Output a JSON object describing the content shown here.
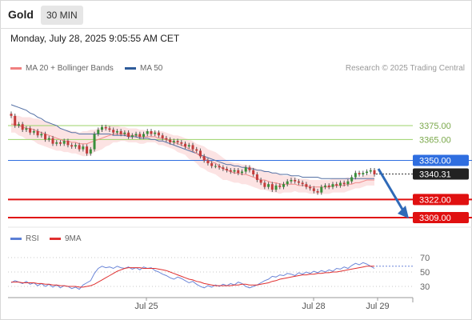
{
  "header": {
    "asset": "Gold",
    "timeframe": "30 MIN",
    "datetime": "Monday, July 28, 2025 9:05:55 AM CET"
  },
  "legend": {
    "main": [
      {
        "label": "MA 20 + Bollinger Bands",
        "color": "#f08080"
      },
      {
        "label": "MA 50",
        "color": "#2e5b9a"
      }
    ],
    "credit": "Research © 2025 Trading Central",
    "rsi": [
      {
        "label": "RSI",
        "color": "#5b7fd6"
      },
      {
        "label": "9MA",
        "color": "#e03030"
      }
    ]
  },
  "chart_data": [
    {
      "type": "candlestick",
      "ylim": [
        3300,
        3395
      ],
      "x_ticks": [
        "Jul 25",
        "Jul 28",
        "Jul 29"
      ],
      "last_price": "3340.31",
      "levels": [
        {
          "label": "3375.00",
          "value": 3375,
          "kind": "resistance-light",
          "color": "#9cd36a"
        },
        {
          "label": "3365.00",
          "value": 3365,
          "kind": "resistance-light",
          "color": "#9cd36a"
        },
        {
          "label": "3350.00",
          "value": 3350,
          "kind": "pivot",
          "color": "#2f6ee0"
        },
        {
          "label": "3322.00",
          "value": 3322,
          "kind": "support",
          "color": "#e01010"
        },
        {
          "label": "3309.00",
          "value": 3309,
          "kind": "support",
          "color": "#e01010"
        }
      ],
      "close": [
        3382,
        3375,
        3376,
        3372,
        3373,
        3370,
        3371,
        3368,
        3369,
        3365,
        3366,
        3362,
        3363,
        3362,
        3364,
        3361,
        3360,
        3361,
        3358,
        3360,
        3355,
        3358,
        3369,
        3372,
        3374,
        3373,
        3372,
        3370,
        3371,
        3369,
        3370,
        3367,
        3368,
        3369,
        3367,
        3369,
        3371,
        3369,
        3370,
        3368,
        3366,
        3365,
        3363,
        3364,
        3363,
        3362,
        3360,
        3361,
        3358,
        3357,
        3353,
        3350,
        3348,
        3346,
        3346,
        3345,
        3344,
        3343,
        3342,
        3343,
        3341,
        3342,
        3345,
        3343,
        3340,
        3336,
        3334,
        3331,
        3333,
        3329,
        3332,
        3331,
        3333,
        3335,
        3336,
        3335,
        3334,
        3333,
        3331,
        3330,
        3328,
        3327,
        3331,
        3332,
        3331,
        3333,
        3332,
        3334,
        3333,
        3335,
        3338,
        3341,
        3340,
        3341,
        3342,
        3343,
        3340
      ],
      "series": [
        {
          "name": "MA 20",
          "values": [
            3376,
            3376,
            3375,
            3374,
            3373,
            3373,
            3372,
            3371,
            3370,
            3369,
            3368,
            3367,
            3366,
            3365,
            3364,
            3364,
            3363,
            3363,
            3362,
            3362,
            3362,
            3363,
            3364,
            3365,
            3366,
            3367,
            3368,
            3369,
            3369,
            3369,
            3369,
            3368,
            3368,
            3368,
            3367,
            3367,
            3367,
            3367,
            3367,
            3366,
            3366,
            3365,
            3364,
            3363,
            3362,
            3361,
            3360,
            3358,
            3357,
            3355,
            3353,
            3352,
            3350,
            3349,
            3348,
            3346,
            3344,
            3343,
            3342,
            3341,
            3341,
            3340,
            3340,
            3339,
            3338,
            3337,
            3336,
            3336,
            3335,
            3334,
            3334,
            3333,
            3333,
            3333,
            3333,
            3333,
            3332,
            3332,
            3332,
            3331,
            3331,
            3331,
            3331,
            3331,
            3331,
            3332,
            3332,
            3332,
            3332,
            3333,
            3333,
            3334,
            3334,
            3335,
            3336,
            3336,
            3336
          ]
        },
        {
          "name": "MA 50",
          "values": [
            3390,
            3389,
            3388,
            3387,
            3386,
            3384,
            3383,
            3381,
            3380,
            3378,
            3377,
            3376,
            3375,
            3373,
            3372,
            3371,
            3370,
            3370,
            3369,
            3369,
            3369,
            3369,
            3369,
            3369,
            3369,
            3369,
            3369,
            3368,
            3368,
            3368,
            3368,
            3367,
            3367,
            3367,
            3366,
            3366,
            3366,
            3365,
            3365,
            3364,
            3364,
            3363,
            3362,
            3361,
            3360,
            3359,
            3358,
            3357,
            3356,
            3355,
            3354,
            3353,
            3352,
            3351,
            3350,
            3349,
            3348,
            3347,
            3347,
            3346,
            3346,
            3345,
            3345,
            3344,
            3344,
            3343,
            3343,
            3342,
            3342,
            3341,
            3341,
            3340,
            3340,
            3340,
            3339,
            3339,
            3339,
            3338,
            3338,
            3338,
            3338,
            3338,
            3337,
            3337,
            3337,
            3337,
            3337,
            3337,
            3337,
            3337,
            3337,
            3337,
            3337,
            3337,
            3337,
            3337,
            3337
          ]
        }
      ],
      "bollinger_band_width": [
        6,
        6,
        7,
        7,
        8,
        8,
        8,
        9,
        9,
        9,
        9,
        9,
        9,
        8,
        8,
        8,
        8,
        8,
        8,
        9,
        9,
        9,
        8,
        8,
        8,
        7,
        7,
        6,
        6,
        5,
        5,
        5,
        5,
        5,
        5,
        5,
        4,
        4,
        4,
        5,
        5,
        5,
        5,
        5,
        6,
        6,
        6,
        7,
        7,
        7,
        8,
        8,
        8,
        8,
        8,
        8,
        8,
        7,
        7,
        7,
        7,
        7,
        7,
        7,
        7,
        7,
        7,
        7,
        7,
        7,
        7,
        7,
        6,
        6,
        6,
        5,
        5,
        5,
        5,
        5,
        5,
        5,
        5,
        5,
        5,
        5,
        5,
        5,
        5,
        5,
        4,
        4,
        4,
        4,
        4,
        4,
        4
      ]
    },
    {
      "type": "line",
      "title": "RSI",
      "ylim": [
        20,
        80
      ],
      "y_ticks": [
        "70",
        "50",
        "30"
      ],
      "series": [
        {
          "name": "RSI",
          "values": [
            35,
            38,
            36,
            34,
            37,
            33,
            35,
            31,
            34,
            30,
            33,
            29,
            32,
            28,
            31,
            30,
            27,
            29,
            26,
            32,
            35,
            38,
            48,
            55,
            58,
            56,
            57,
            55,
            58,
            56,
            55,
            57,
            54,
            56,
            53,
            57,
            55,
            56,
            52,
            50,
            47,
            45,
            42,
            40,
            43,
            41,
            38,
            35,
            37,
            33,
            30,
            28,
            31,
            29,
            32,
            30,
            33,
            31,
            34,
            32,
            36,
            34,
            30,
            28,
            30,
            32,
            35,
            38,
            40,
            44,
            43,
            46,
            45,
            48,
            47,
            45,
            49,
            47,
            50,
            48,
            51,
            49,
            52,
            50,
            53,
            51,
            55,
            54,
            57,
            55,
            59,
            62,
            60,
            63,
            61,
            58,
            55
          ]
        },
        {
          "name": "9MA",
          "values": [
            36,
            36,
            36,
            35,
            35,
            35,
            35,
            34,
            34,
            33,
            33,
            32,
            32,
            31,
            31,
            30,
            30,
            30,
            29,
            29,
            30,
            31,
            33,
            36,
            39,
            42,
            45,
            48,
            51,
            53,
            55,
            56,
            56,
            56,
            56,
            55,
            55,
            55,
            55,
            54,
            53,
            52,
            50,
            48,
            46,
            44,
            42,
            40,
            39,
            37,
            36,
            34,
            33,
            32,
            31,
            31,
            31,
            31,
            31,
            32,
            32,
            33,
            33,
            32,
            32,
            32,
            33,
            34,
            35,
            37,
            38,
            40,
            41,
            42,
            43,
            44,
            45,
            46,
            46,
            47,
            47,
            48,
            48,
            49,
            49,
            50,
            50,
            51,
            52,
            53,
            54,
            55,
            56,
            57,
            58,
            58,
            58
          ]
        }
      ]
    }
  ]
}
